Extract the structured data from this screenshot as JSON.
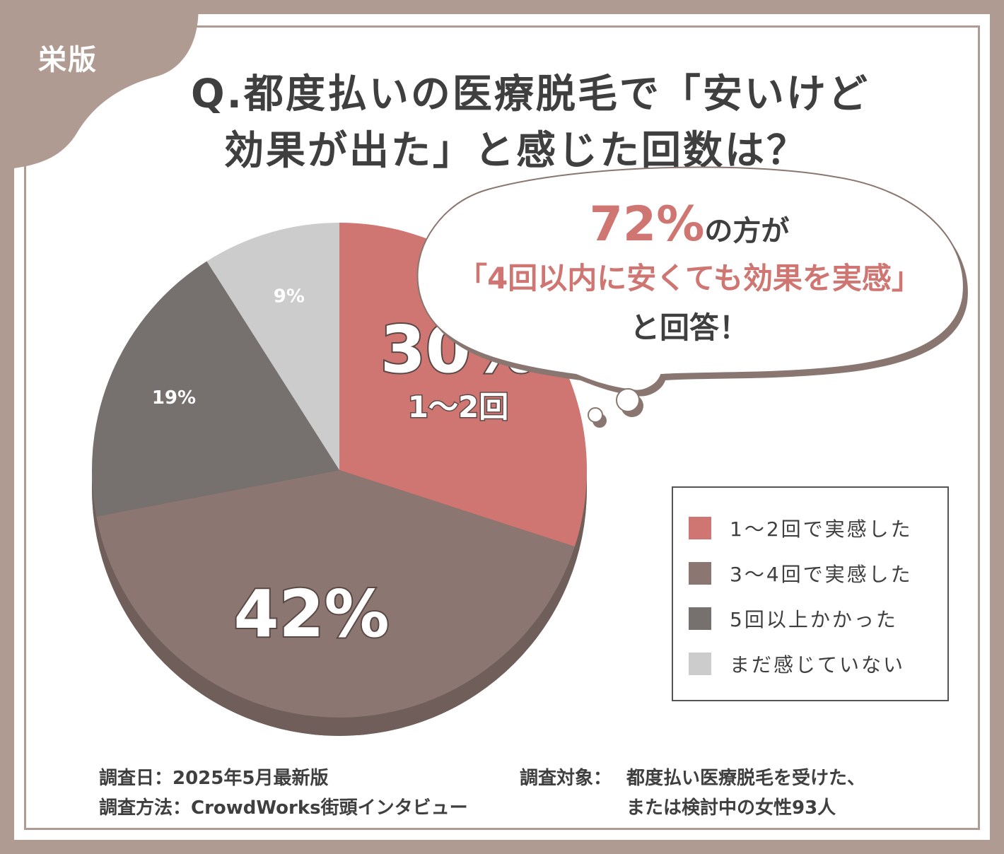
{
  "badge": "栄版",
  "title": {
    "line1": "Q.都度払いの医療脱毛で「安いけど",
    "line2": "効果が出た」と感じた回数は？"
  },
  "bubble": {
    "highlight": "72%",
    "line1_rest": "の方が",
    "line2": "「4回以内に安くても効果を実感」",
    "line3": "と回答！"
  },
  "chart_data": {
    "type": "pie",
    "slices": [
      {
        "label": "1～2回で実感した",
        "value": 30,
        "display": "30%",
        "sublabel": "1～2回",
        "color": "#cf7572"
      },
      {
        "label": "3～4回で実感した",
        "value": 42,
        "display": "42%",
        "sublabel": "",
        "color": "#8c7672"
      },
      {
        "label": "5回以上かかった",
        "value": 19,
        "display": "19%",
        "sublabel": "",
        "color": "#76706e"
      },
      {
        "label": "まだ感じていない",
        "value": 9,
        "display": "9%",
        "sublabel": "",
        "color": "#cccccc"
      }
    ],
    "legend_position": "right"
  },
  "footer": {
    "date": "調査日：2025年5月最新版",
    "method": "調査方法：CrowdWorks街頭インタビュー",
    "target_label": "調査対象：",
    "target_line1": "都度払い医療脱毛を受けた、",
    "target_line2": "または検討中の女性93人"
  },
  "colors": {
    "frame": "#b09b93",
    "accent": "#cf7572",
    "text": "#3f3f3f"
  }
}
